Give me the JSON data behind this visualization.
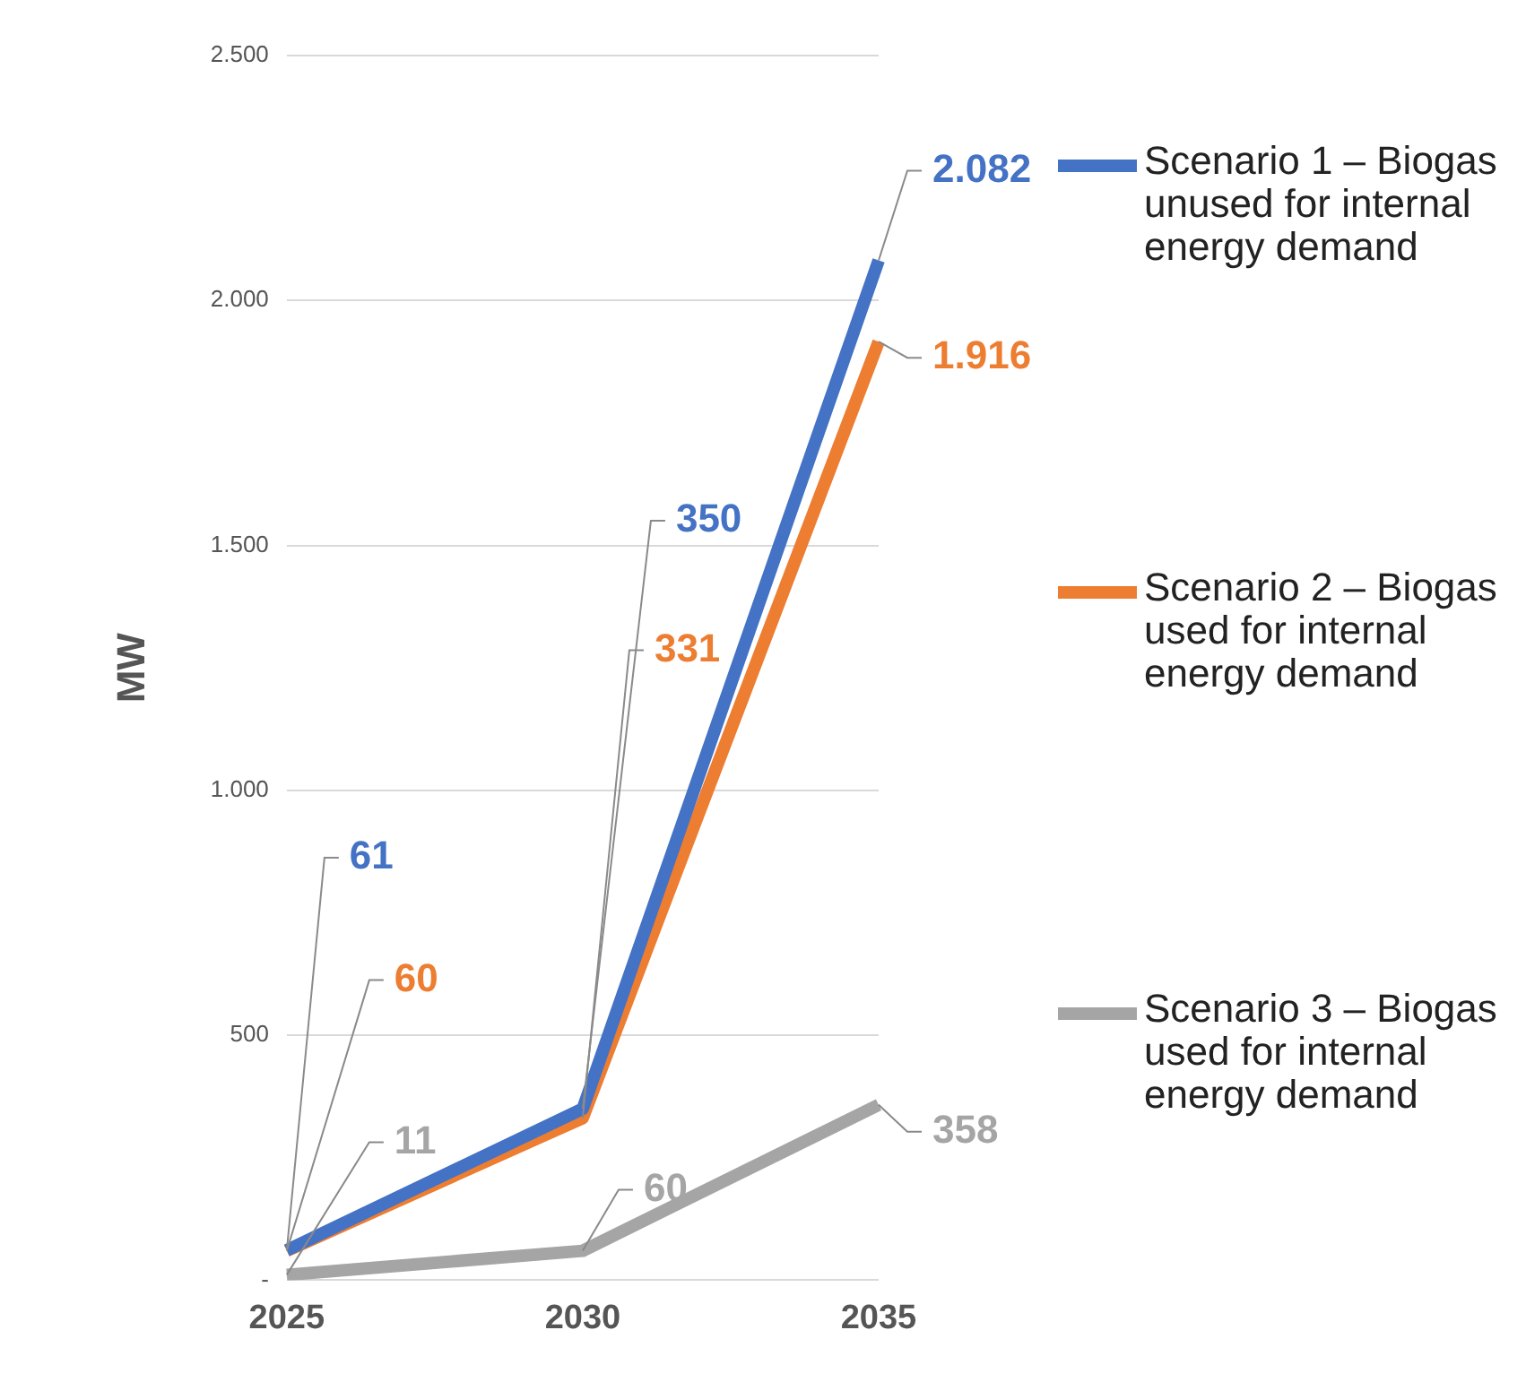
{
  "chart_data": {
    "type": "line",
    "ylabel": "MW",
    "categories": [
      "2025",
      "2030",
      "2035"
    ],
    "ylim": [
      0,
      2500
    ],
    "yticks": [
      {
        "value": 0,
        "label": "-"
      },
      500,
      {
        "value": 1000,
        "label": "1.000"
      },
      {
        "value": 1500,
        "label": "1.500"
      },
      {
        "value": 2000,
        "label": "2.000"
      },
      {
        "value": 2500,
        "label": "2.500"
      }
    ],
    "grid": "y",
    "legend": "right",
    "marker": "none",
    "line_style": "solid",
    "series": [
      {
        "name": "Scenario 1 – Biogas unused for internal energy demand",
        "color": "#4472c4",
        "values": [
          61,
          350,
          2082
        ],
        "value_labels": [
          "61",
          "350",
          "2.082"
        ]
      },
      {
        "name": "Scenario 2 – Biogas used for internal energy demand",
        "color": "#ed7d31",
        "values": [
          60,
          331,
          1916
        ],
        "value_labels": [
          "60",
          "331",
          "1.916"
        ]
      },
      {
        "name": "Scenario 3 – Biogas used for internal energy demand",
        "color": "#a5a5a5",
        "values": [
          11,
          60,
          358
        ],
        "value_labels": [
          "11",
          "60",
          "358"
        ]
      }
    ]
  }
}
